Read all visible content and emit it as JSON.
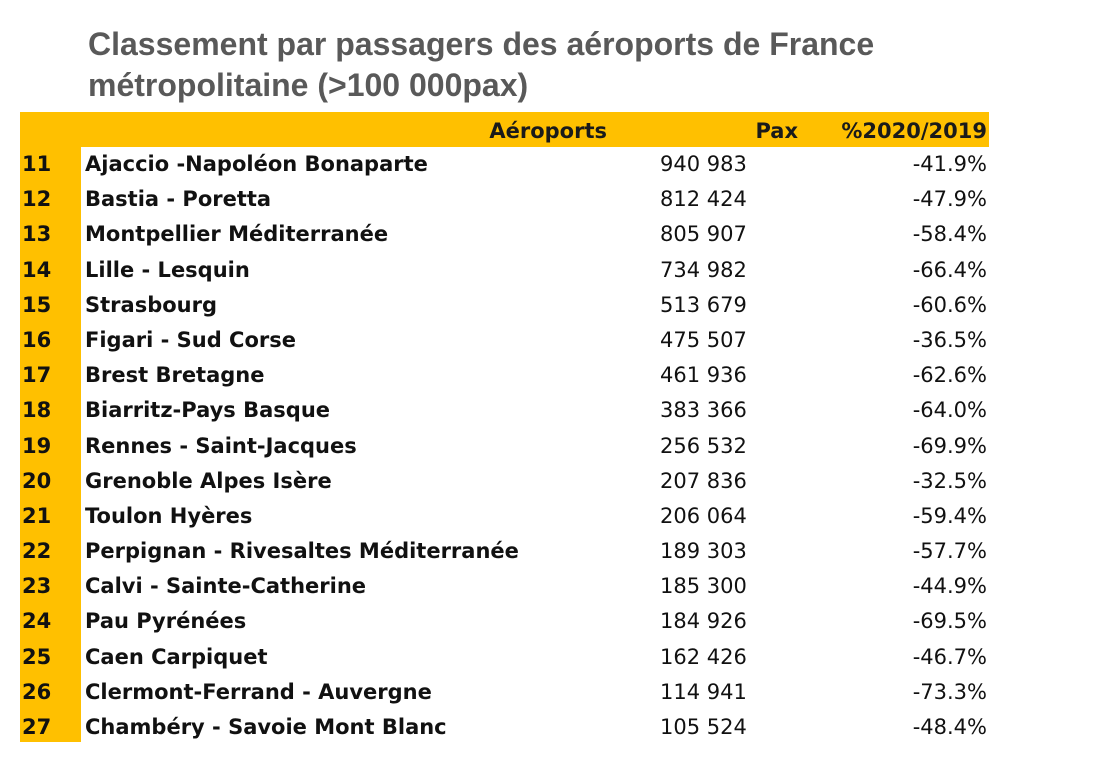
{
  "title": {
    "line1": "Classement par passagers des aéroports de France",
    "line2": "métropolitaine (>100 000pax)"
  },
  "table": {
    "headers": {
      "airport": "Aéroports",
      "pax": "Pax",
      "pct": "%2020/2019"
    },
    "rows": [
      {
        "rank": "11",
        "name": "Ajaccio -Napoléon Bonaparte",
        "pax": "940 983",
        "pct": "-41.9%"
      },
      {
        "rank": "12",
        "name": "Bastia - Poretta",
        "pax": "812 424",
        "pct": "-47.9%"
      },
      {
        "rank": "13",
        "name": "Montpellier Méditerranée",
        "pax": "805 907",
        "pct": "-58.4%"
      },
      {
        "rank": "14",
        "name": "Lille - Lesquin",
        "pax": "734 982",
        "pct": "-66.4%"
      },
      {
        "rank": "15",
        "name": "Strasbourg",
        "pax": "513 679",
        "pct": "-60.6%"
      },
      {
        "rank": "16",
        "name": "Figari - Sud Corse",
        "pax": "475 507",
        "pct": "-36.5%"
      },
      {
        "rank": "17",
        "name": "Brest Bretagne",
        "pax": "461 936",
        "pct": "-62.6%"
      },
      {
        "rank": "18",
        "name": "Biarritz-Pays Basque",
        "pax": "383 366",
        "pct": "-64.0%"
      },
      {
        "rank": "19",
        "name": "Rennes - Saint-Jacques",
        "pax": "256 532",
        "pct": "-69.9%"
      },
      {
        "rank": "20",
        "name": "Grenoble Alpes Isère",
        "pax": "207 836",
        "pct": "-32.5%"
      },
      {
        "rank": "21",
        "name": "Toulon Hyères",
        "pax": "206 064",
        "pct": "-59.4%"
      },
      {
        "rank": "22",
        "name": "Perpignan - Rivesaltes Méditerranée",
        "pax": "189 303",
        "pct": "-57.7%"
      },
      {
        "rank": "23",
        "name": "Calvi - Sainte-Catherine",
        "pax": "185 300",
        "pct": "-44.9%"
      },
      {
        "rank": "24",
        "name": "Pau Pyrénées",
        "pax": "184 926",
        "pct": "-69.5%"
      },
      {
        "rank": "25",
        "name": "Caen Carpiquet",
        "pax": "162 426",
        "pct": "-46.7%"
      },
      {
        "rank": "26",
        "name": "Clermont-Ferrand - Auvergne",
        "pax": "114 941",
        "pct": "-73.3%"
      },
      {
        "rank": "27",
        "name": "Chambéry - Savoie Mont Blanc",
        "pax": "105 524",
        "pct": "-48.4%"
      }
    ]
  },
  "colors": {
    "header_bg": "#ffc000",
    "title_text": "#595959"
  }
}
